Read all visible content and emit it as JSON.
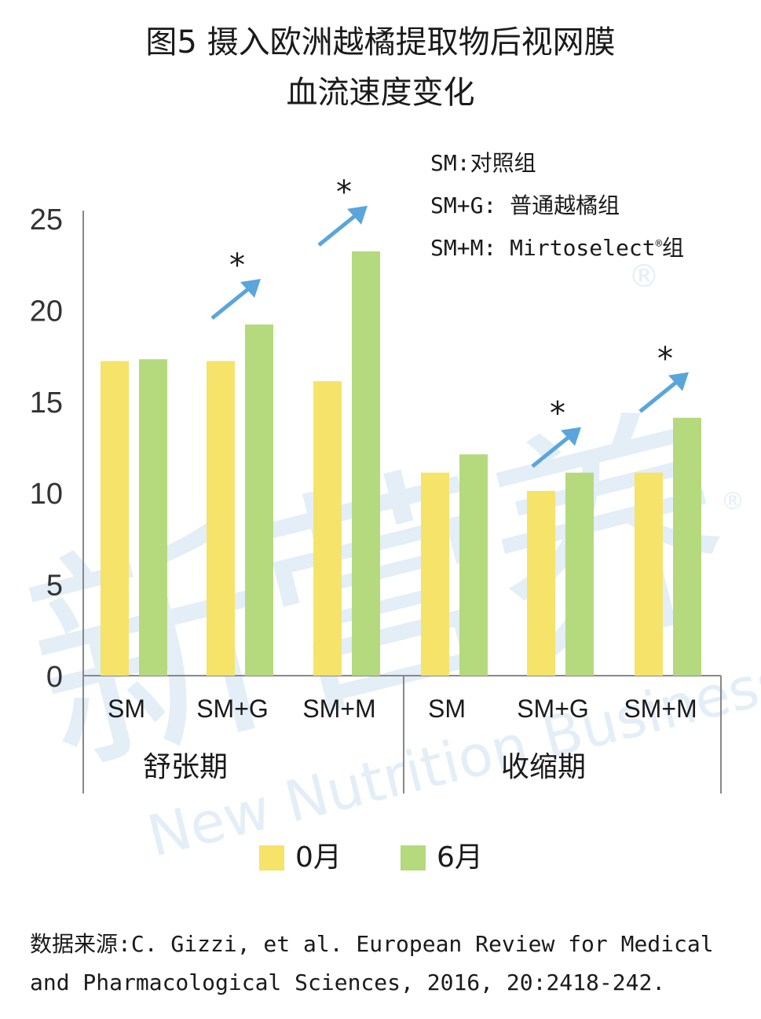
{
  "title": {
    "line1": "图5 摄入欧洲越橘提取物后视网膜",
    "line2": "血流速度变化"
  },
  "group_notes": {
    "sm": "SM:对照组",
    "smg": "SM+G: 普通越橘组",
    "smm_prefix": "SM+M: Mirtoselect",
    "smm_sup": "®",
    "smm_suffix": "组"
  },
  "colors": {
    "month0": "#f5e36a",
    "month6": "#b5d97d",
    "arrow": "#5aa5dc",
    "axis": "#888888"
  },
  "chart_data": {
    "type": "bar",
    "ylim": [
      0,
      25
    ],
    "yticks": [
      0,
      5,
      10,
      15,
      20,
      25
    ],
    "groups": [
      {
        "label": "舒张期",
        "categories": [
          "SM",
          "SM+G",
          "SM+M"
        ]
      },
      {
        "label": "收缩期",
        "categories": [
          "SM",
          "SM+G",
          "SM+M"
        ]
      }
    ],
    "series": [
      {
        "name": "0月",
        "values": [
          17.2,
          17.2,
          16.1,
          11.1,
          10.1,
          11.1
        ]
      },
      {
        "name": "6月",
        "values": [
          17.3,
          19.2,
          23.2,
          12.1,
          11.1,
          14.1
        ]
      }
    ],
    "significance": [
      "",
      "*",
      "*",
      "",
      "*",
      "*"
    ],
    "legend_position": "bottom"
  },
  "watermark": {
    "cn": "新营养",
    "en": "New Nutrition Business",
    "mark": "®"
  },
  "source": {
    "line1": "数据来源:C. Gizzi, et al. European Review for Medical",
    "line2": "and Pharmacological Sciences, 2016, 20:2418-242."
  }
}
